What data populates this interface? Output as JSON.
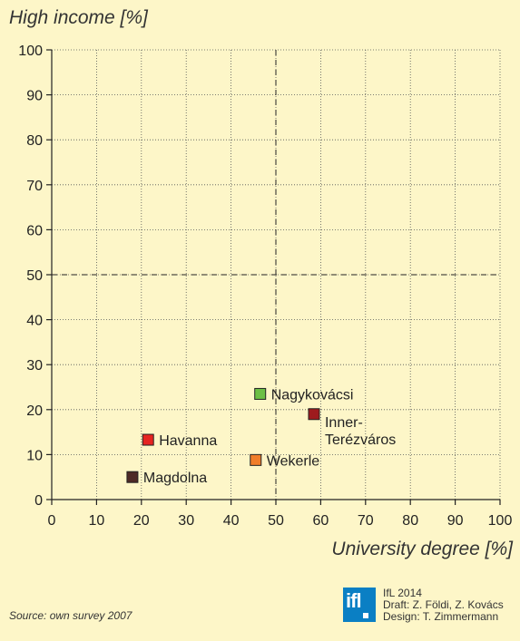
{
  "chart_data": {
    "type": "scatter",
    "title": "",
    "xlabel": "University degree [%]",
    "ylabel": "High income [%]",
    "xlim": [
      0,
      100
    ],
    "ylim": [
      0,
      100
    ],
    "xticks": [
      0,
      10,
      20,
      30,
      40,
      50,
      60,
      70,
      80,
      90,
      100
    ],
    "yticks": [
      0,
      10,
      20,
      30,
      40,
      50,
      60,
      70,
      80,
      90,
      100
    ],
    "grid": true,
    "reference_lines": {
      "x": 50,
      "y": 50
    },
    "points": [
      {
        "label": "Nagykovácsi",
        "x": 46.5,
        "y": 23.5,
        "color": "#6cbf45"
      },
      {
        "label": "Inner-Terézváros",
        "label_lines": [
          "Inner-",
          "Terézváros"
        ],
        "x": 58.5,
        "y": 19,
        "color": "#9e1b1e"
      },
      {
        "label": "Havanna",
        "x": 21.5,
        "y": 13.3,
        "color": "#e52421"
      },
      {
        "label": "Wekerle",
        "x": 45.5,
        "y": 8.8,
        "color": "#f07d2a"
      },
      {
        "label": "Magdolna",
        "x": 18,
        "y": 5,
        "color": "#4e2a26"
      }
    ]
  },
  "footer": {
    "source": "Source: own survey 2007",
    "logo_text": "ifl",
    "credit_year": "IfL 2014",
    "credit_draft": "Draft: Z. Földi, Z. Kovács",
    "credit_design": "Design: T. Zimmermann"
  },
  "colors": {
    "background": "#fdf6c8",
    "logo": "#0a7fc4"
  }
}
